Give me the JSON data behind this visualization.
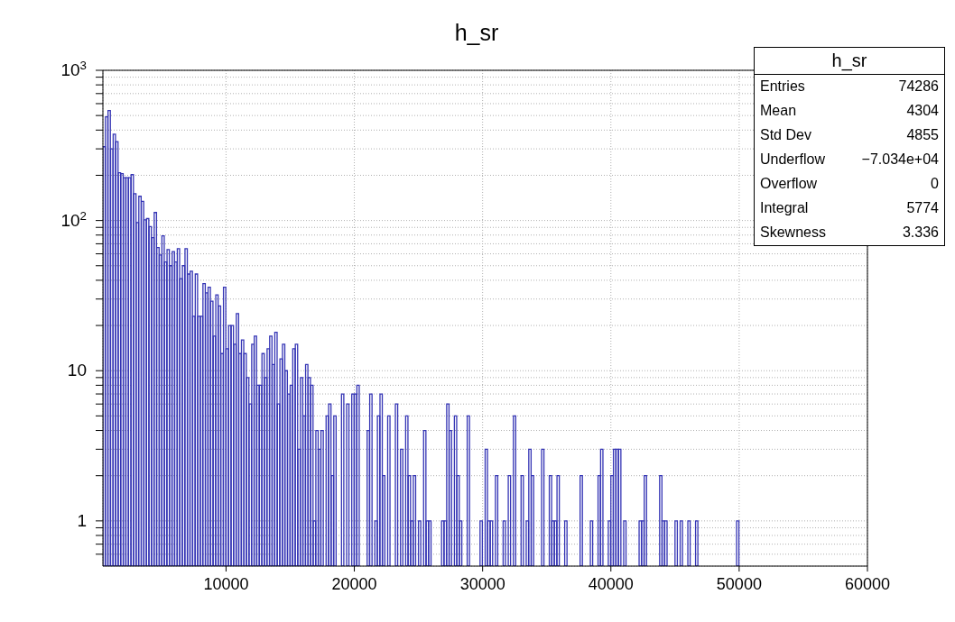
{
  "chart_data": {
    "type": "histogram",
    "title": "h_sr",
    "bins": [
      400,
      600,
      800,
      1000,
      1200,
      1400,
      1600,
      1800,
      2000,
      2200,
      2400,
      2600,
      2800,
      3000,
      3200,
      3400,
      3600,
      3800,
      4000,
      4200,
      4400,
      4600,
      4800,
      5000,
      5200,
      5400,
      5600,
      5800,
      6000,
      6200,
      6400,
      6600,
      6800,
      7000,
      7200,
      7400,
      7600,
      7800,
      8000,
      8200,
      8400,
      8600,
      8800,
      9000,
      9200,
      9400,
      9600,
      9800,
      10000,
      10200,
      10400,
      10600,
      10800,
      11000,
      11200,
      11400,
      11600,
      11800,
      12000,
      12200,
      12400,
      12600,
      12800,
      13000,
      13200,
      13400,
      13600,
      13800,
      14000,
      14200,
      14400,
      14600,
      14800,
      15000,
      15200,
      15400,
      15600,
      15800,
      16000,
      16200,
      16400,
      16600,
      16800,
      17000,
      17200,
      17400,
      17600,
      17800,
      18000,
      18200,
      18400,
      18600,
      18800,
      19000,
      19200,
      19400,
      19600,
      19800,
      20000,
      20200,
      20400,
      20600,
      20800,
      21000,
      21200,
      21400,
      21600,
      21800,
      22000,
      22200,
      22400,
      22600,
      22800,
      23000,
      23200,
      23400,
      23600,
      23800,
      24000,
      24200,
      24400,
      24600,
      24800,
      25000,
      25200,
      25400,
      25600,
      25800,
      26000,
      26200,
      26400,
      26600,
      26800,
      27000,
      27200,
      27400,
      27600,
      27800,
      28000,
      28200,
      28400,
      28600,
      28800,
      29000,
      29200,
      29400,
      29600,
      29800,
      30000,
      30200,
      30400,
      30600,
      30800,
      31000,
      31200,
      31400,
      31600,
      31800,
      32000,
      32200,
      32400,
      32600,
      32800,
      33000,
      33200,
      33400,
      33600,
      33800,
      34000,
      34200,
      34400,
      34600,
      34800,
      35000,
      35200,
      35400,
      35600,
      35800,
      36000,
      36200,
      36400,
      36600,
      36800,
      37000,
      37200,
      37400,
      37600,
      37800,
      38000,
      38200,
      38400,
      38600,
      38800,
      39000,
      39200,
      39400,
      39600,
      39800,
      40000,
      40200,
      40400,
      40600,
      40800,
      41000,
      41200,
      41400,
      41600,
      41800,
      42000,
      42200,
      42400,
      42600,
      42800,
      43000,
      43200,
      43400,
      43600,
      43800,
      44000,
      44200,
      44400,
      44600,
      44800,
      45000,
      45200,
      45400,
      45600,
      45800,
      46000,
      46200,
      46400,
      46600,
      46800,
      47000,
      47200,
      47400,
      47600,
      47800,
      48000,
      48200,
      48400,
      48600,
      48800,
      49000,
      49200,
      49400,
      49600,
      49800,
      50000,
      50200,
      50400,
      50600,
      50800,
      51000,
      51200,
      51400,
      51600,
      51800,
      52000,
      52200,
      52400,
      52600,
      52800,
      53000,
      53200,
      53400,
      53600,
      53800,
      54000,
      54200,
      54400,
      54600,
      54800,
      55000,
      55200,
      55400,
      55600,
      55800,
      56000,
      56200,
      56400,
      56600,
      56800,
      57000,
      57200,
      57400,
      57600,
      57800,
      58000,
      58200,
      58400,
      58600,
      58800,
      59000,
      59200,
      59400,
      59600,
      59800,
      60000
    ],
    "values": [
      310,
      490,
      540,
      300,
      375,
      335,
      208,
      205,
      193,
      193,
      193,
      202,
      151,
      97,
      145,
      134,
      101,
      103,
      91,
      77,
      113,
      66,
      59,
      79,
      53,
      64,
      50,
      62,
      53,
      65,
      41,
      50,
      65,
      44,
      46,
      23,
      44,
      23,
      23,
      38,
      33,
      36,
      29,
      17,
      32,
      27,
      13,
      36,
      14,
      20,
      20,
      15,
      24,
      13,
      16,
      13,
      9,
      6,
      15,
      17,
      8,
      8,
      13,
      9,
      14,
      17,
      11,
      18,
      6,
      12,
      15,
      10,
      7,
      8,
      14,
      15,
      3,
      9,
      5,
      11,
      9,
      8,
      1,
      4,
      3,
      4,
      null,
      5,
      6,
      2,
      5,
      null,
      null,
      7,
      null,
      6,
      null,
      7,
      7,
      8,
      null,
      null,
      null,
      4,
      7,
      null,
      1,
      5,
      7,
      2,
      null,
      5,
      null,
      null,
      6,
      null,
      3,
      null,
      5,
      2,
      1,
      2,
      null,
      1,
      null,
      4,
      1,
      1,
      null,
      null,
      null,
      null,
      1,
      1,
      6,
      4,
      null,
      5,
      2,
      1,
      null,
      null,
      5,
      null,
      null,
      null,
      null,
      1,
      null,
      3,
      1,
      1,
      null,
      2,
      null,
      null,
      1,
      null,
      2,
      null,
      5,
      null,
      null,
      2,
      null,
      1,
      3,
      2,
      null,
      null,
      null,
      3,
      null,
      null,
      2,
      1,
      1,
      2,
      null,
      null,
      1,
      null,
      null,
      null,
      null,
      null,
      2,
      null,
      null,
      null,
      1,
      null,
      null,
      2,
      3,
      null,
      null,
      1,
      2,
      3,
      3,
      3,
      null,
      1,
      null,
      null,
      null,
      null,
      null,
      1,
      1,
      2,
      null,
      null,
      null,
      null,
      null,
      2,
      1,
      1,
      null,
      null,
      null,
      1,
      null,
      1,
      null,
      null,
      1,
      null,
      null,
      1,
      null,
      null,
      null,
      null,
      null,
      null,
      null,
      null,
      null,
      null,
      null,
      null,
      null,
      null,
      null,
      1,
      null,
      null,
      null,
      null,
      null,
      null,
      null,
      null,
      null,
      null,
      null,
      null,
      null,
      null,
      null,
      null,
      null,
      null,
      null,
      null,
      null,
      null,
      null,
      null,
      null,
      null,
      null,
      null,
      null,
      null,
      null,
      null,
      null,
      null,
      null,
      null,
      null,
      null,
      null,
      null,
      null,
      null,
      null,
      null,
      null,
      null,
      null,
      null,
      null,
      null
    ],
    "color": "#3535b5",
    "log": "y",
    "xlim": [
      400,
      60000
    ],
    "xticks": [
      10000,
      20000,
      30000,
      40000,
      50000,
      60000
    ],
    "ylim": [
      0.5,
      1000
    ],
    "yticks": [
      {
        "value": 0.6,
        "label": null
      },
      {
        "value": 0.7,
        "label": null
      },
      {
        "value": 0.8,
        "label": null
      },
      {
        "value": 0.9,
        "label": null
      },
      1,
      {
        "value": 2,
        "label": null
      },
      {
        "value": 3,
        "label": null
      },
      {
        "value": 4,
        "label": null
      },
      {
        "value": 5,
        "label": null
      },
      {
        "value": 6,
        "label": null
      },
      {
        "value": 7,
        "label": null
      },
      {
        "value": 8,
        "label": null
      },
      {
        "value": 9,
        "label": null
      },
      10,
      {
        "value": 20,
        "label": null
      },
      {
        "value": 30,
        "label": null
      },
      {
        "value": 40,
        "label": null
      },
      {
        "value": 50,
        "label": null
      },
      {
        "value": 60,
        "label": null
      },
      {
        "value": 70,
        "label": null
      },
      {
        "value": 80,
        "label": null
      },
      {
        "value": 90,
        "label": null
      },
      {
        "value": 100,
        "label": "10$^{2}$"
      },
      {
        "value": 200,
        "label": null
      },
      {
        "value": 300,
        "label": null
      },
      {
        "value": 400,
        "label": null
      },
      {
        "value": 500,
        "label": null
      },
      {
        "value": 600,
        "label": null
      },
      {
        "value": 700,
        "label": null
      },
      {
        "value": 800,
        "label": null
      },
      {
        "value": 900,
        "label": null
      },
      {
        "value": 1000,
        "label": "10$^{3}$"
      }
    ],
    "grid": true,
    "annotations": [
      "h_sr",
      "Entries",
      "74286",
      "Mean",
      "4304",
      "Std Dev",
      "4855",
      "Underflow",
      "−7.034e+04",
      "Overflow",
      "0",
      "Integral",
      "5774",
      "Skewness",
      "3.336"
    ]
  }
}
